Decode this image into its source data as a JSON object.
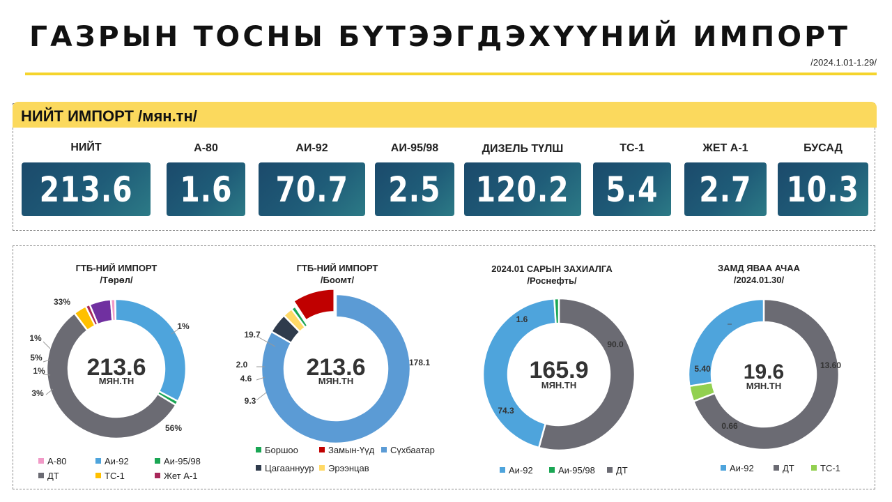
{
  "header": {
    "title": "ГАЗРЫН ТОСНЫ БҮТЭЭГДЭХҮҮНИЙ ИМПОРТ",
    "period": "/2024.1.01-1.29/"
  },
  "summary": {
    "title": "НИЙТ ИМПОРТ /мян.тн/",
    "items": [
      {
        "label": "НИЙТ",
        "value": "213.6"
      },
      {
        "label": "А-80",
        "value": "1.6"
      },
      {
        "label": "АИ-92",
        "value": "70.7"
      },
      {
        "label": "АИ-95/98",
        "value": "2.5"
      },
      {
        "label": "ДИЗЕЛЬ ТҮЛШ",
        "value": "120.2"
      },
      {
        "label": "ТС-1",
        "value": "5.4"
      },
      {
        "label": "ЖЕТ А-1",
        "value": "2.7"
      },
      {
        "label": "БУСАД",
        "value": "10.3"
      }
    ]
  },
  "colors": {
    "ai92": "#4ea4dc",
    "dt": "#6b6b73",
    "ai95": "#1aa654",
    "a80": "#f19ac7",
    "ts1": "#ffc000",
    "jet": "#a8275a",
    "other": "#7030a0",
    "borshoo": "#1aa654",
    "zamyn": "#c00000",
    "sukh": "#5b9bd5",
    "tsagaan": "#2f3b4c",
    "erentsav": "#ffd966",
    "ts1green": "#92d050"
  },
  "chart_data": [
    {
      "type": "pie",
      "title": "ГТБ-НИЙ ИМПОРТ",
      "subtitle": "/Төрөл/",
      "center_value": "213.6",
      "center_unit": "мян.тн",
      "slices": [
        {
          "name": "Аи-92",
          "value": 33,
          "label": "33%",
          "color": "#4ea4dc"
        },
        {
          "name": "Аи-95/98",
          "value": 1,
          "label": "1%",
          "color": "#1aa654"
        },
        {
          "name": "ДТ",
          "value": 56,
          "label": "56%",
          "color": "#6b6b73"
        },
        {
          "name": "ТС-1",
          "value": 3,
          "label": "3%",
          "color": "#ffc000"
        },
        {
          "name": "Жет А-1",
          "value": 1,
          "label": "1%",
          "color": "#a8275a"
        },
        {
          "name": "",
          "value": 5,
          "label": "5%",
          "color": "#7030a0"
        },
        {
          "name": "А-80",
          "value": 1,
          "label": "1%",
          "color": "#f19ac7"
        }
      ],
      "legend": [
        "А-80",
        "Аи-92",
        "Аи-95/98",
        "ДТ",
        "ТС-1",
        "Жет А-1"
      ]
    },
    {
      "type": "pie",
      "title": "ГТБ-НИЙ ИМПОРТ",
      "subtitle": "/Боомт/",
      "center_value": "213.6",
      "center_unit": "мян.тн",
      "slices": [
        {
          "name": "Сүхбаатар",
          "value": 178.1,
          "label": "178.1",
          "color": "#5b9bd5"
        },
        {
          "name": "Цагааннуур",
          "value": 9.3,
          "label": "9.3",
          "color": "#2f3b4c"
        },
        {
          "name": "Эрээнцав",
          "value": 4.6,
          "label": "4.6",
          "color": "#ffd966"
        },
        {
          "name": "Боршоо",
          "value": 2.0,
          "label": "2.0",
          "color": "#1aa654"
        },
        {
          "name": "Замын-Үүд",
          "value": 19.7,
          "label": "19.7",
          "color": "#c00000"
        }
      ],
      "legend": [
        "Боршоо",
        "Замын-Үүд",
        "Сүхбаатар",
        "Цагааннуур",
        "Эрээнцав"
      ]
    },
    {
      "type": "pie",
      "title": "2024.01 САРЫН ЗАХИАЛГА",
      "subtitle": "/Роснефть/",
      "center_value": "165.9",
      "center_unit": "мян.тн",
      "slices": [
        {
          "name": "ДТ",
          "value": 90.0,
          "label": "90.0",
          "color": "#6b6b73"
        },
        {
          "name": "Аи-92",
          "value": 74.3,
          "label": "74.3",
          "color": "#4ea4dc"
        },
        {
          "name": "Аи-95/98",
          "value": 1.6,
          "label": "1.6",
          "color": "#1aa654"
        }
      ],
      "legend": [
        "Аи-92",
        "Аи-95/98",
        "ДТ"
      ]
    },
    {
      "type": "pie",
      "title": "ЗАМД ЯВАА АЧАА",
      "subtitle": "/2024.01.30/",
      "center_value": "19.6",
      "center_unit": "мян.тн",
      "slices": [
        {
          "name": "ДТ",
          "value": 13.6,
          "label": "13.60",
          "color": "#6b6b73"
        },
        {
          "name": "ТС-1",
          "value": 0.66,
          "label": "0.66",
          "color": "#92d050"
        },
        {
          "name": "Аи-92",
          "value": 5.4,
          "label": "5.40",
          "color": "#4ea4dc"
        }
      ],
      "legend": [
        "Аи-92",
        "ДТ",
        "ТС-1"
      ]
    }
  ]
}
